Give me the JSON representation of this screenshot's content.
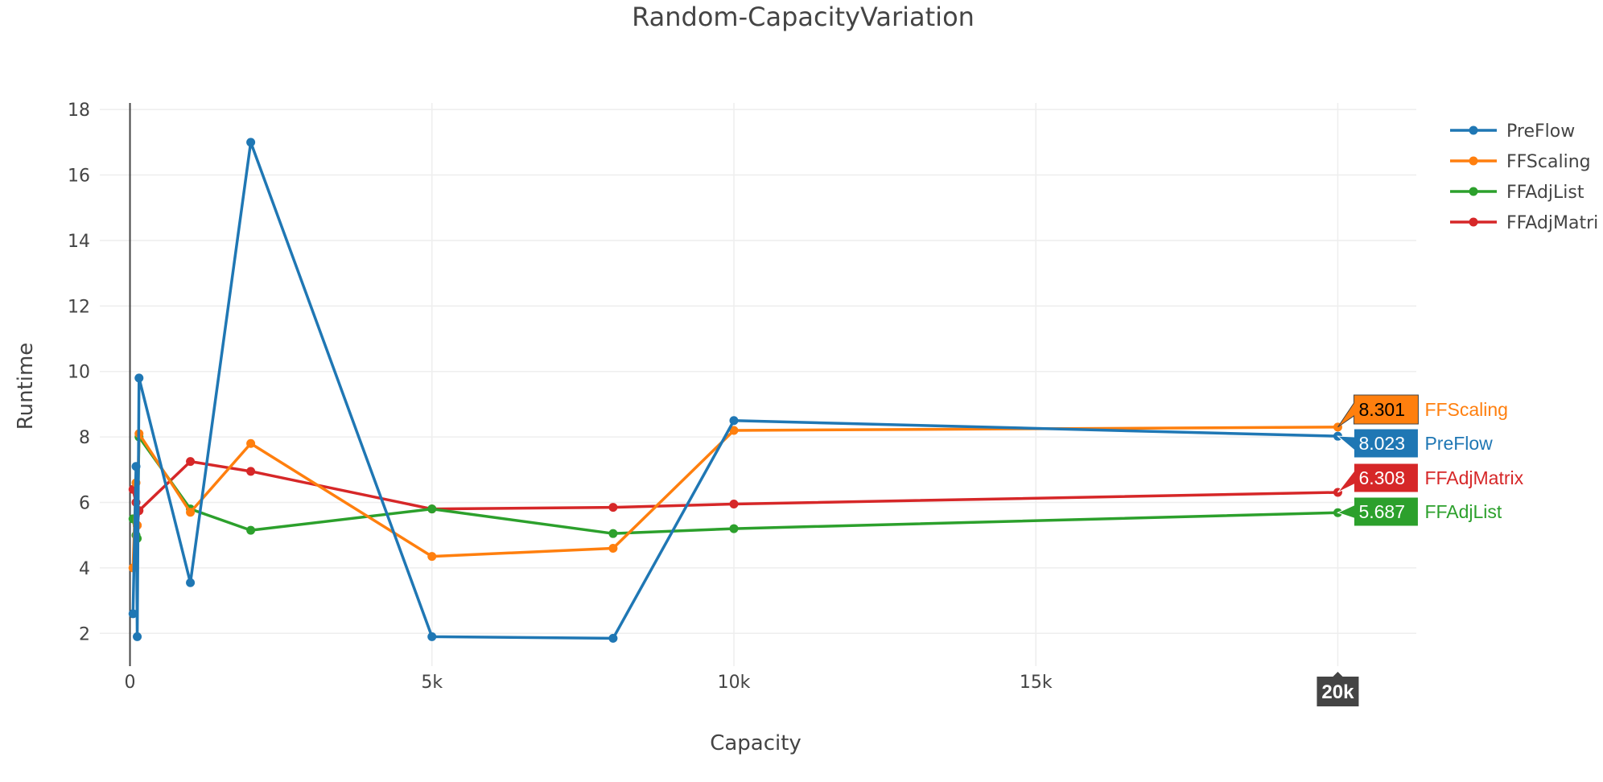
{
  "chart_data": {
    "type": "line",
    "title": "Random-CapacityVariation",
    "xlabel": "Capacity",
    "ylabel": "Runtime",
    "xlim": [
      -500,
      21300
    ],
    "ylim": [
      1,
      18.2
    ],
    "x_ticks": [
      0,
      5000,
      10000,
      15000,
      20000
    ],
    "x_tick_labels": [
      "0",
      "5k",
      "10k",
      "15k",
      "20k"
    ],
    "y_ticks": [
      2,
      4,
      6,
      8,
      10,
      12,
      14,
      16,
      18
    ],
    "y_tick_labels": [
      "2",
      "4",
      "6",
      "8",
      "10",
      "12",
      "14",
      "16",
      "18"
    ],
    "grid": true,
    "legend_position": "top-right",
    "series": [
      {
        "name": "PreFlow",
        "color": "#1f77b4",
        "x": [
          50,
          100,
          120,
          150,
          1000,
          2000,
          5000,
          8000,
          10000,
          20000
        ],
        "y": [
          2.6,
          7.1,
          1.9,
          9.8,
          3.55,
          17.0,
          1.9,
          1.85,
          8.5,
          8.023
        ]
      },
      {
        "name": "FFScaling",
        "color": "#ff7f0e",
        "x": [
          50,
          100,
          120,
          150,
          1000,
          2000,
          5000,
          8000,
          10000,
          20000
        ],
        "y": [
          4.0,
          6.6,
          5.3,
          8.1,
          5.7,
          7.8,
          4.35,
          4.6,
          8.2,
          8.301
        ]
      },
      {
        "name": "FFAdjList",
        "color": "#2ca02c",
        "x": [
          50,
          100,
          120,
          150,
          1000,
          2000,
          5000,
          8000,
          10000,
          20000
        ],
        "y": [
          5.5,
          5.0,
          4.9,
          8.0,
          5.8,
          5.15,
          5.8,
          5.05,
          5.2,
          5.687
        ]
      },
      {
        "name": "FFAdjMatrix",
        "color": "#d62728",
        "x": [
          50,
          100,
          120,
          150,
          1000,
          2000,
          5000,
          8000,
          10000,
          20000
        ],
        "y": [
          6.4,
          6.0,
          5.3,
          5.75,
          7.25,
          6.95,
          5.8,
          5.85,
          5.95,
          6.308
        ]
      }
    ],
    "legend_labels": [
      "PreFlow",
      "FFScaling",
      "FFAdjList",
      "FFAdjMatri"
    ],
    "hover": {
      "x_label": "20k",
      "labels": [
        {
          "series": "FFScaling",
          "value": "8.301",
          "name": "FFScaling",
          "color": "#ff7f0e",
          "text_color": "#000000"
        },
        {
          "series": "PreFlow",
          "value": "8.023",
          "name": "PreFlow",
          "color": "#1f77b4",
          "text_color": "#ffffff"
        },
        {
          "series": "FFAdjMatrix",
          "value": "6.308",
          "name": "FFAdjMatrix",
          "color": "#d62728",
          "text_color": "#ffffff"
        },
        {
          "series": "FFAdjList",
          "value": "5.687",
          "name": "FFAdjList",
          "color": "#2ca02c",
          "text_color": "#ffffff"
        }
      ]
    }
  }
}
